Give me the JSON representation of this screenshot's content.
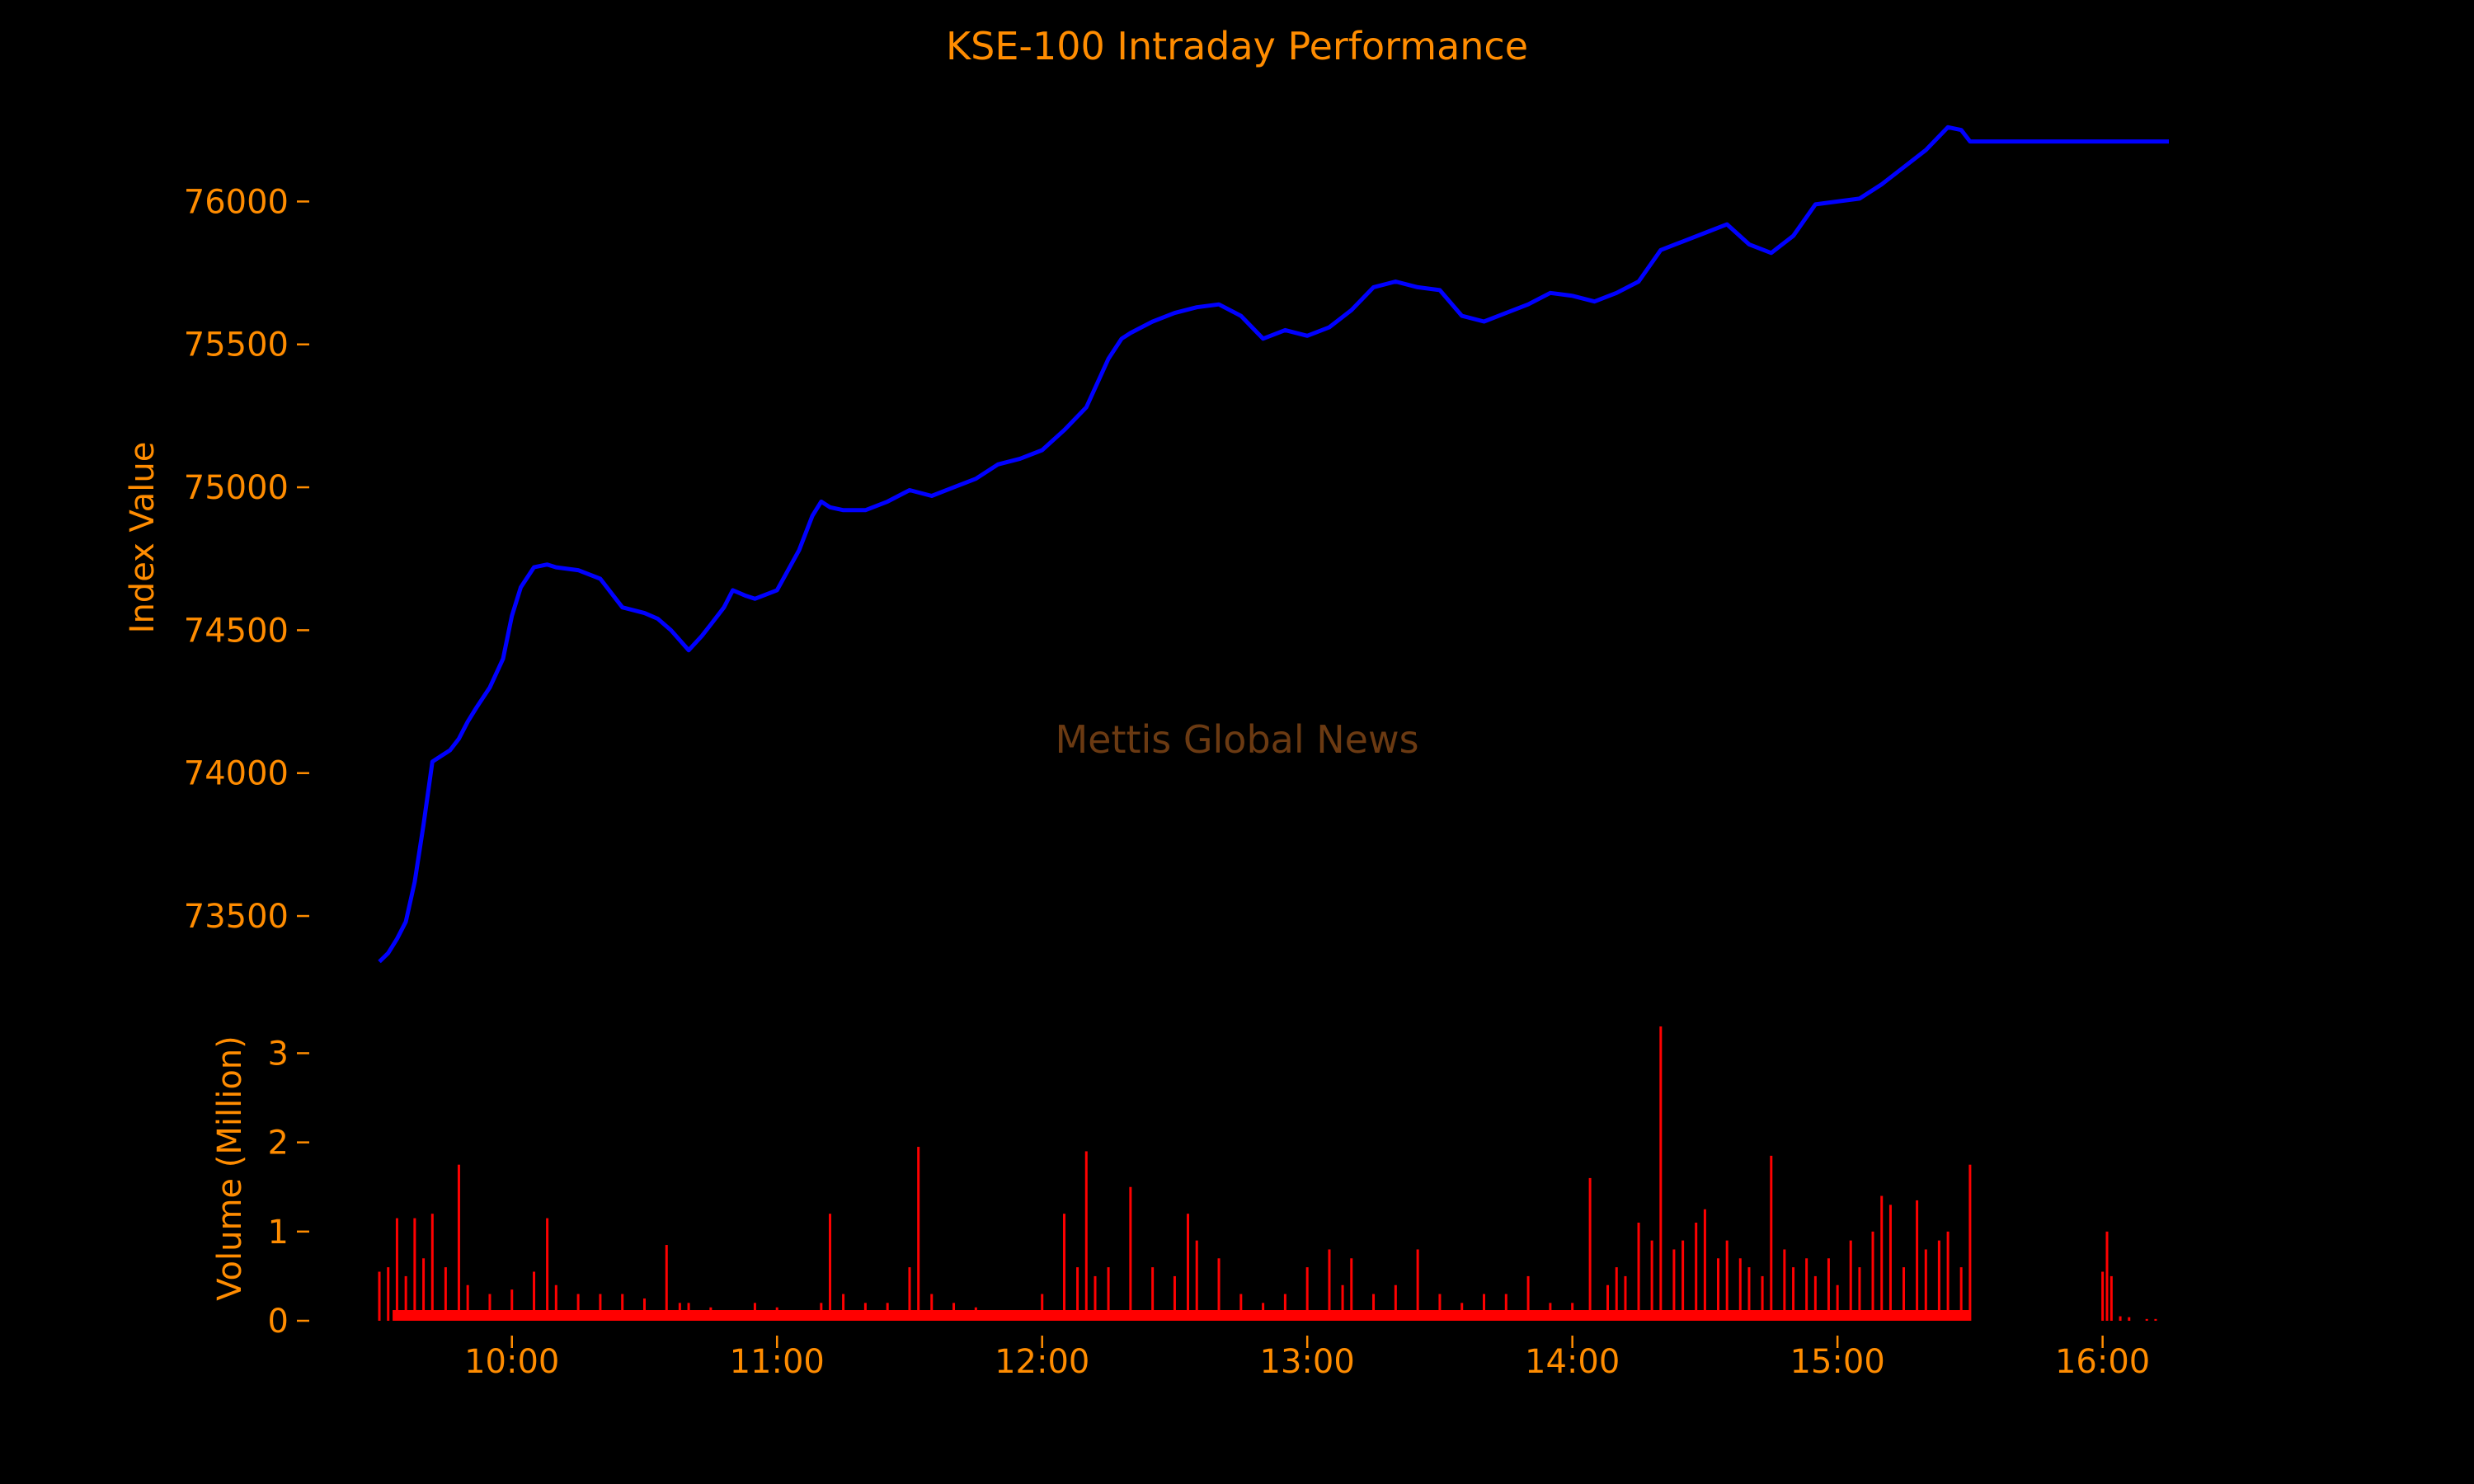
{
  "chart_data": {
    "type": "line",
    "title": "KSE-100 Intraday Performance",
    "watermark": "Mettis Global News",
    "colors": {
      "background": "#000000",
      "text": "#ff8c00",
      "index_line": "#0000ff",
      "volume_bars": "#ff0000",
      "watermark": "#6b3a12"
    },
    "xlim": [
      "09:30",
      "16:15"
    ],
    "x_ticks": [
      "10:00",
      "11:00",
      "12:00",
      "13:00",
      "14:00",
      "15:00",
      "16:00"
    ],
    "price_panel": {
      "ylabel": "Index Value",
      "ylim": [
        73330,
        76330
      ],
      "y_ticks": [
        73500,
        74000,
        74500,
        75000,
        75500,
        76000
      ],
      "y_tick_labels": [
        "73500",
        "74000",
        "74500",
        "75000",
        "75500",
        "76000"
      ],
      "series": [
        {
          "x": [
            "09:30",
            "09:32",
            "09:34",
            "09:36",
            "09:38",
            "09:40",
            "09:42",
            "09:44",
            "09:46",
            "09:48",
            "09:50",
            "09:52",
            "09:55",
            "09:58",
            "10:00",
            "10:02",
            "10:05",
            "10:08",
            "10:10",
            "10:15",
            "10:20",
            "10:25",
            "10:30",
            "10:33",
            "10:36",
            "10:40",
            "10:43",
            "10:45",
            "10:48",
            "10:50",
            "10:53",
            "10:55",
            "11:00",
            "11:05",
            "11:08",
            "11:10",
            "11:12",
            "11:15",
            "11:20",
            "11:25",
            "11:30",
            "11:35",
            "11:40",
            "11:45",
            "11:50",
            "11:55",
            "12:00",
            "12:05",
            "12:10",
            "12:15",
            "12:18",
            "12:20",
            "12:25",
            "12:30",
            "12:35",
            "12:40",
            "12:45",
            "12:50",
            "12:55",
            "13:00",
            "13:05",
            "13:10",
            "13:15",
            "13:20",
            "13:25",
            "13:30",
            "13:35",
            "13:40",
            "13:45",
            "13:50",
            "13:55",
            "14:00",
            "14:05",
            "14:10",
            "14:15",
            "14:20",
            "14:25",
            "14:30",
            "14:35",
            "14:40",
            "14:45",
            "14:50",
            "14:55",
            "15:00",
            "15:05",
            "15:10",
            "15:15",
            "15:20",
            "15:25",
            "15:28",
            "15:30",
            "15:35",
            "15:45",
            "16:00",
            "16:15"
          ],
          "y": [
            73340,
            73370,
            73420,
            73480,
            73620,
            73820,
            74040,
            74060,
            74080,
            74120,
            74180,
            74230,
            74300,
            74400,
            74550,
            74650,
            74720,
            74730,
            74720,
            74710,
            74680,
            74580,
            74560,
            74540,
            74500,
            74430,
            74480,
            74520,
            74580,
            74640,
            74620,
            74610,
            74640,
            74780,
            74900,
            74950,
            74930,
            74920,
            74920,
            74950,
            74990,
            74970,
            75000,
            75030,
            75080,
            75100,
            75130,
            75200,
            75280,
            75450,
            75520,
            75540,
            75580,
            75610,
            75630,
            75640,
            75600,
            75520,
            75550,
            75530,
            75560,
            75620,
            75700,
            75720,
            75700,
            75690,
            75600,
            75580,
            75610,
            75640,
            75680,
            75670,
            75650,
            75680,
            75720,
            75830,
            75860,
            75890,
            75920,
            75850,
            75820,
            75880,
            75990,
            76000,
            76010,
            76060,
            76120,
            76180,
            76260,
            76250,
            76210,
            76210,
            76210,
            76210,
            76210
          ]
        }
      ]
    },
    "volume_panel": {
      "ylabel": "Volume (Million)",
      "ylim": [
        0,
        3.3
      ],
      "y_ticks": [
        0,
        1,
        2,
        3
      ],
      "y_tick_labels": [
        "0",
        "1",
        "2",
        "3"
      ],
      "series": [
        {
          "x": [
            "09:30",
            "09:32",
            "09:34",
            "09:36",
            "09:38",
            "09:40",
            "09:42",
            "09:45",
            "09:48",
            "09:50",
            "09:55",
            "10:00",
            "10:05",
            "10:08",
            "10:10",
            "10:15",
            "10:20",
            "10:25",
            "10:30",
            "10:35",
            "10:38",
            "10:40",
            "10:45",
            "10:50",
            "10:55",
            "11:00",
            "11:05",
            "11:10",
            "11:12",
            "11:15",
            "11:20",
            "11:25",
            "11:30",
            "11:32",
            "11:35",
            "11:40",
            "11:45",
            "11:50",
            "11:55",
            "12:00",
            "12:05",
            "12:08",
            "12:10",
            "12:12",
            "12:15",
            "12:20",
            "12:25",
            "12:30",
            "12:33",
            "12:35",
            "12:40",
            "12:45",
            "12:50",
            "12:55",
            "13:00",
            "13:05",
            "13:08",
            "13:10",
            "13:15",
            "13:20",
            "13:25",
            "13:30",
            "13:35",
            "13:40",
            "13:45",
            "13:50",
            "13:55",
            "14:00",
            "14:04",
            "14:08",
            "14:10",
            "14:12",
            "14:15",
            "14:18",
            "14:20",
            "14:23",
            "14:25",
            "14:28",
            "14:30",
            "14:33",
            "14:35",
            "14:38",
            "14:40",
            "14:43",
            "14:45",
            "14:48",
            "14:50",
            "14:53",
            "14:55",
            "14:58",
            "15:00",
            "15:03",
            "15:05",
            "15:08",
            "15:10",
            "15:12",
            "15:15",
            "15:18",
            "15:20",
            "15:23",
            "15:25",
            "15:28",
            "15:30",
            "16:00",
            "16:01",
            "16:02",
            "16:04",
            "16:06",
            "16:10",
            "16:12"
          ],
          "y": [
            0.55,
            0.6,
            1.15,
            0.5,
            1.15,
            0.7,
            1.2,
            0.6,
            1.75,
            0.4,
            0.3,
            0.35,
            0.55,
            1.15,
            0.4,
            0.3,
            0.3,
            0.3,
            0.25,
            0.85,
            0.2,
            0.2,
            0.15,
            0.1,
            0.2,
            0.15,
            0.1,
            0.2,
            1.2,
            0.3,
            0.2,
            0.2,
            0.6,
            1.95,
            0.3,
            0.2,
            0.15,
            0.1,
            0.1,
            0.3,
            1.2,
            0.6,
            1.9,
            0.5,
            0.6,
            1.5,
            0.6,
            0.5,
            1.2,
            0.9,
            0.7,
            0.3,
            0.2,
            0.3,
            0.6,
            0.8,
            0.4,
            0.7,
            0.3,
            0.4,
            0.8,
            0.3,
            0.2,
            0.3,
            0.3,
            0.5,
            0.2,
            0.2,
            1.6,
            0.4,
            0.6,
            0.5,
            1.1,
            0.9,
            3.3,
            0.8,
            0.9,
            1.1,
            1.25,
            0.7,
            0.9,
            0.7,
            0.6,
            0.5,
            1.85,
            0.8,
            0.6,
            0.7,
            0.5,
            0.7,
            0.4,
            0.9,
            0.6,
            1.0,
            1.4,
            1.3,
            0.6,
            1.35,
            0.8,
            0.9,
            1.0,
            0.6,
            1.75,
            0.55,
            1.0,
            0.5,
            0.05,
            0.04,
            0.02,
            0.02
          ]
        }
      ]
    }
  }
}
